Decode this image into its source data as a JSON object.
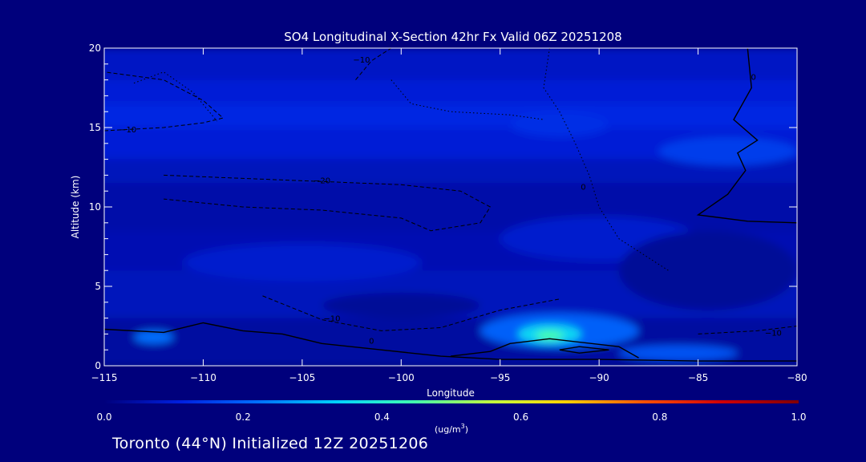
{
  "chart_data": {
    "type": "heatmap",
    "title": "SO4 Longitudinal X-Section 42hr  Fx Valid 06Z 20251208",
    "xlabel": "Longitude",
    "ylabel": "Altitude (km)",
    "xlim": [
      -115,
      -80
    ],
    "ylim": [
      0,
      20
    ],
    "x_ticks": [
      -115,
      -110,
      -105,
      -100,
      -95,
      -90,
      -85,
      -80
    ],
    "x_tick_labels": [
      "−115",
      "−110",
      "−105",
      "−100",
      "−95",
      "−90",
      "−85",
      "−80"
    ],
    "y_ticks": [
      0,
      5,
      10,
      15,
      20
    ],
    "y_tick_labels": [
      "0",
      "5",
      "10",
      "15",
      "20"
    ],
    "grid": false,
    "colorbar": {
      "min": 0.0,
      "max": 1.0,
      "ticks": [
        0.0,
        0.2,
        0.4,
        0.6,
        0.8,
        1.0
      ],
      "tick_labels": [
        "0.0",
        "0.2",
        "0.4",
        "0.6",
        "0.8",
        "1.0"
      ],
      "units_label": "(ug/m",
      "units_sup": "3",
      "units_close": ")",
      "colors": [
        "#00007c",
        "#0020e0",
        "#0070ff",
        "#00d0ff",
        "#40ffb0",
        "#c0ff40",
        "#ffd000",
        "#ff5000",
        "#d00000",
        "#800000"
      ]
    },
    "field_bands": [
      {
        "y0": 18.0,
        "y1": 20.0,
        "value": 0.08
      },
      {
        "y0": 16.5,
        "y1": 18.0,
        "value": 0.1
      },
      {
        "y0": 15.0,
        "y1": 16.5,
        "value": 0.12
      },
      {
        "y0": 13.0,
        "y1": 15.0,
        "value": 0.1
      },
      {
        "y0": 11.5,
        "y1": 13.0,
        "value": 0.07
      },
      {
        "y0": 8.5,
        "y1": 11.5,
        "value": 0.05
      },
      {
        "y0": 6.0,
        "y1": 8.5,
        "value": 0.06
      },
      {
        "y0": 3.0,
        "y1": 6.0,
        "value": 0.07
      },
      {
        "y0": 0.0,
        "y1": 3.0,
        "value": 0.04
      }
    ],
    "field_patches": [
      {
        "x": -83.5,
        "y": 13.5,
        "rx": 3.5,
        "ry": 0.9,
        "value": 0.15
      },
      {
        "x": -92.0,
        "y": 15.2,
        "rx": 2.5,
        "ry": 0.8,
        "value": 0.13
      },
      {
        "x": -90.0,
        "y": 8.0,
        "rx": 5.0,
        "ry": 1.4,
        "value": 0.09
      },
      {
        "x": -105.0,
        "y": 6.5,
        "rx": 6.0,
        "ry": 1.2,
        "value": 0.09
      },
      {
        "x": -92.0,
        "y": 2.2,
        "rx": 4.0,
        "ry": 1.1,
        "value": 0.2
      },
      {
        "x": -92.5,
        "y": 2.0,
        "rx": 1.6,
        "ry": 0.6,
        "value": 0.35
      },
      {
        "x": -92.5,
        "y": 1.9,
        "rx": 0.7,
        "ry": 0.3,
        "value": 0.45
      },
      {
        "x": -86.0,
        "y": 0.8,
        "rx": 3.0,
        "ry": 0.5,
        "value": 0.18
      },
      {
        "x": -112.5,
        "y": 1.8,
        "rx": 1.0,
        "ry": 0.4,
        "value": 0.22
      },
      {
        "x": -100.0,
        "y": 3.8,
        "rx": 4.0,
        "ry": 0.8,
        "value": 0.03
      },
      {
        "x": -84.5,
        "y": 6.0,
        "rx": 4.5,
        "ry": 2.5,
        "value": 0.03
      }
    ],
    "contours": [
      {
        "style": "solid",
        "label": "0",
        "label_at": [
          -101.5,
          1.6
        ],
        "points": [
          [
            -115,
            2.3
          ],
          [
            -112,
            2.1
          ],
          [
            -110,
            2.7
          ],
          [
            -108,
            2.2
          ],
          [
            -106,
            2.0
          ],
          [
            -104,
            1.4
          ],
          [
            -101,
            1.0
          ],
          [
            -98,
            0.6
          ],
          [
            -95,
            0.4
          ],
          [
            -90,
            0.4
          ],
          [
            -85,
            0.3
          ],
          [
            -80,
            0.3
          ]
        ]
      },
      {
        "style": "solid",
        "label": "0",
        "label_at": [
          -82.2,
          18.2
        ],
        "points": [
          [
            -82.5,
            20
          ],
          [
            -82.3,
            17.5
          ],
          [
            -83.2,
            15.5
          ],
          [
            -82.0,
            14.2
          ],
          [
            -83.0,
            13.4
          ],
          [
            -82.6,
            12.3
          ],
          [
            -83.5,
            10.8
          ],
          [
            -85.0,
            9.5
          ],
          [
            -82.5,
            9.1
          ],
          [
            -80,
            9.0
          ]
        ]
      },
      {
        "style": "solid",
        "label": "",
        "label_at": null,
        "points": [
          [
            -97.5,
            0.6
          ],
          [
            -95.5,
            0.9
          ],
          [
            -94.5,
            1.4
          ],
          [
            -92.5,
            1.7
          ],
          [
            -89.0,
            1.2
          ],
          [
            -88.0,
            0.5
          ]
        ]
      },
      {
        "style": "solid",
        "label": "",
        "label_at": null,
        "points": [
          [
            -92.0,
            1.0
          ],
          [
            -91.0,
            1.2
          ],
          [
            -89.5,
            1.0
          ],
          [
            -91.0,
            0.8
          ],
          [
            -92.0,
            1.0
          ]
        ]
      },
      {
        "style": "dashed",
        "label": "−10",
        "label_at": [
          -113.8,
          14.9
        ],
        "points": [
          [
            -115,
            14.8
          ],
          [
            -112,
            15.0
          ],
          [
            -110,
            15.3
          ],
          [
            -109,
            15.6
          ],
          [
            -110,
            16.7
          ],
          [
            -112,
            18.0
          ],
          [
            -115,
            18.5
          ]
        ]
      },
      {
        "style": "dashed",
        "label": "−10",
        "label_at": [
          -102.0,
          19.3
        ],
        "points": [
          [
            -102.3,
            18.0
          ],
          [
            -101.5,
            19.2
          ],
          [
            -100.5,
            20
          ]
        ]
      },
      {
        "style": "dashed",
        "label": "−20",
        "label_at": [
          -104.0,
          11.7
        ],
        "points": [
          [
            -112,
            12.0
          ],
          [
            -108,
            11.8
          ],
          [
            -104,
            11.6
          ],
          [
            -100,
            11.4
          ],
          [
            -97,
            11.0
          ],
          [
            -95.5,
            10.0
          ],
          [
            -96.0,
            9.0
          ],
          [
            -98.5,
            8.5
          ],
          [
            -100,
            9.3
          ],
          [
            -104,
            9.8
          ],
          [
            -108,
            10.0
          ],
          [
            -112,
            10.5
          ]
        ]
      },
      {
        "style": "dashed",
        "label": "−10",
        "label_at": [
          -103.5,
          3.0
        ],
        "points": [
          [
            -107,
            4.4
          ],
          [
            -104,
            2.9
          ],
          [
            -101,
            2.2
          ],
          [
            -98,
            2.4
          ],
          [
            -95,
            3.5
          ],
          [
            -92,
            4.2
          ]
        ]
      },
      {
        "style": "dashed",
        "label": "−10",
        "label_at": [
          -81.2,
          2.1
        ],
        "points": [
          [
            -85,
            2.0
          ],
          [
            -82,
            2.2
          ],
          [
            -80,
            2.5
          ]
        ]
      },
      {
        "style": "dotted",
        "label": "0",
        "label_at": [
          -90.8,
          11.3
        ],
        "points": [
          [
            -92.5,
            20
          ],
          [
            -92.8,
            17.5
          ],
          [
            -92.0,
            16.0
          ],
          [
            -91.2,
            14.0
          ],
          [
            -90.5,
            12.0
          ],
          [
            -90.0,
            10.0
          ],
          [
            -89.0,
            8.0
          ],
          [
            -86.5,
            6.0
          ]
        ]
      },
      {
        "style": "dotted",
        "label": "",
        "label_at": null,
        "points": [
          [
            -113.5,
            17.8
          ],
          [
            -112,
            18.5
          ],
          [
            -110.5,
            17.2
          ],
          [
            -109.3,
            15.4
          ]
        ]
      },
      {
        "style": "dotted",
        "label": "",
        "label_at": null,
        "points": [
          [
            -100.5,
            18.0
          ],
          [
            -99.5,
            16.5
          ],
          [
            -97.5,
            16.0
          ],
          [
            -94.5,
            15.8
          ],
          [
            -92.8,
            15.5
          ]
        ]
      }
    ]
  },
  "footer": {
    "text": "Toronto (44°N) Initialized 12Z 20251206"
  }
}
